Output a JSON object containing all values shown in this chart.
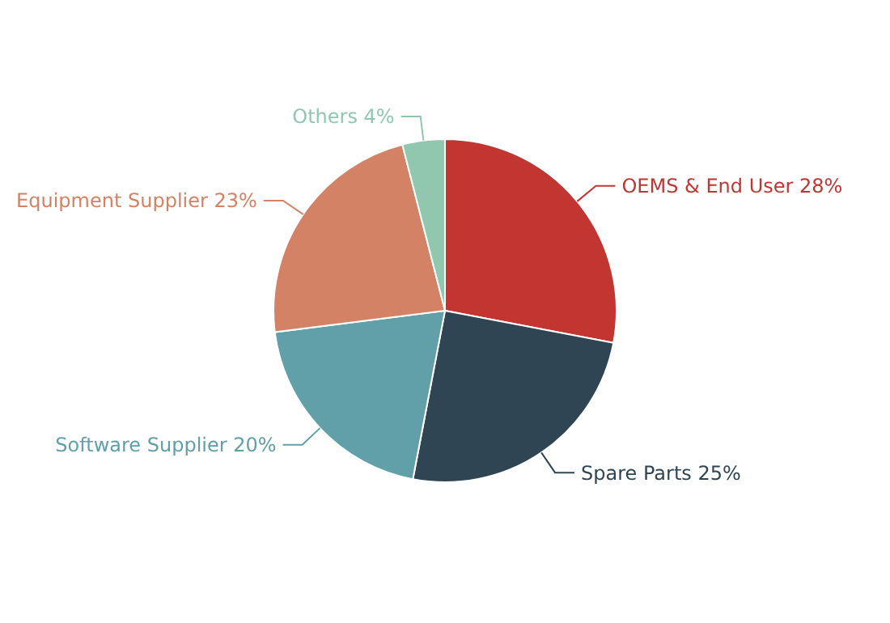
{
  "chart_data": {
    "type": "pie",
    "categories": [
      "OEMS & End User",
      "Spare Parts",
      "Software Supplier",
      "Equipment Supplier",
      "Others"
    ],
    "values": [
      28,
      25,
      20,
      23,
      4
    ],
    "colors": [
      "#c23531",
      "#2f4554",
      "#61a0a8",
      "#d48265",
      "#91c7ae"
    ],
    "value_labels": [
      "28%",
      "25%",
      "20%",
      "23%",
      "4%"
    ]
  }
}
